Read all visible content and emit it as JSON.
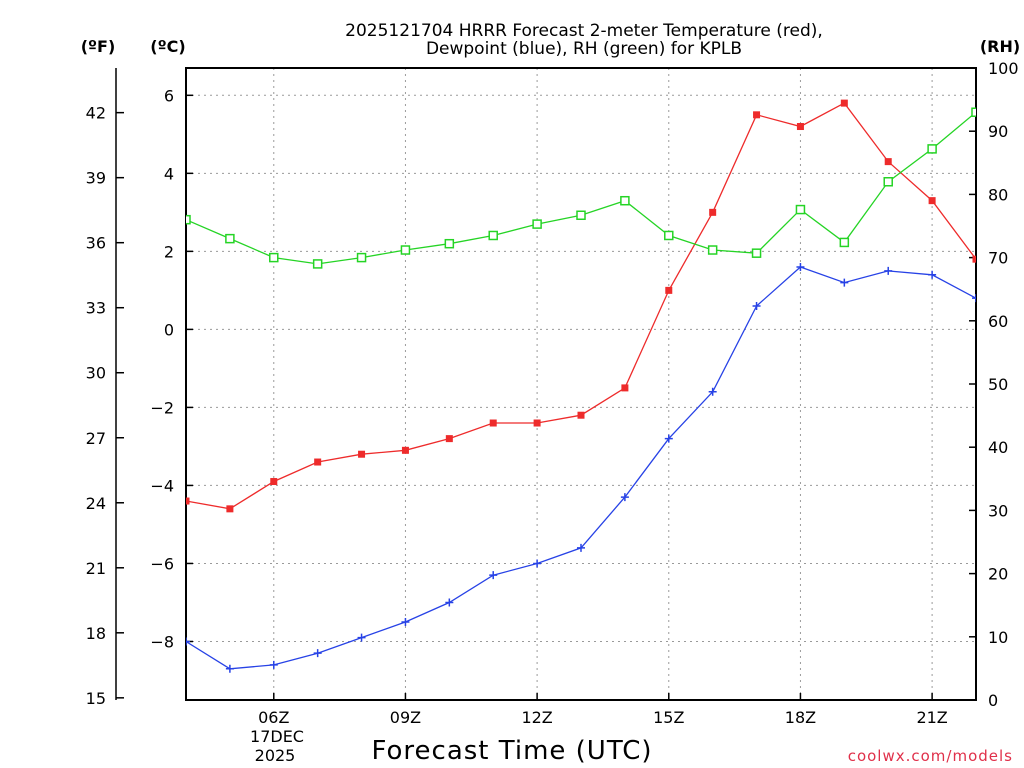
{
  "chart_data": {
    "type": "line",
    "title_line1": "2025121704 HRRR Forecast 2-meter Temperature (red),",
    "title_line2": "Dewpoint (blue), RH (green) for KPLB",
    "xlabel": "Forecast Time (UTC)",
    "credit": "coolwx.com/models",
    "units": {
      "fahrenheit": "(ºF)",
      "celsius": "(ºC)",
      "rh": "(RH)"
    },
    "date_label": [
      "17DEC",
      "2025"
    ],
    "xlim": [
      4,
      22
    ],
    "x_ticks": [
      {
        "hour": 6,
        "label": "06Z"
      },
      {
        "hour": 9,
        "label": "09Z"
      },
      {
        "hour": 12,
        "label": "12Z"
      },
      {
        "hour": 15,
        "label": "15Z"
      },
      {
        "hour": 18,
        "label": "18Z"
      },
      {
        "hour": 21,
        "label": "21Z"
      }
    ],
    "ylim_celsius": [
      -9.5,
      6.7
    ],
    "y_ticks_celsius": [
      6,
      4,
      2,
      0,
      -2,
      -4,
      -6,
      -8
    ],
    "y_tick_labels_celsius": [
      "6",
      "4",
      "2",
      "0",
      "−2",
      "−4",
      "−6",
      "−8"
    ],
    "y_ticks_fahrenheit": [
      42,
      39,
      36,
      33,
      30,
      27,
      24,
      21,
      18,
      15
    ],
    "ylim_rh": [
      0,
      100
    ],
    "y_ticks_rh": [
      100,
      90,
      80,
      70,
      60,
      50,
      40,
      30,
      20,
      10,
      0
    ],
    "hours": [
      4,
      5,
      6,
      7,
      8,
      9,
      10,
      11,
      12,
      13,
      14,
      15,
      16,
      17,
      18,
      19,
      20,
      21,
      22
    ],
    "series": [
      {
        "name": "Temperature",
        "color": "#ee2b2b",
        "marker": "filled-square",
        "axis": "celsius",
        "values": [
          -4.4,
          -4.6,
          -3.9,
          -3.4,
          -3.2,
          -3.1,
          -2.8,
          -2.4,
          -2.4,
          -2.2,
          -1.5,
          1.0,
          3.0,
          5.5,
          5.2,
          5.8,
          4.3,
          3.3,
          1.8
        ]
      },
      {
        "name": "Dewpoint",
        "color": "#2742e6",
        "marker": "plus",
        "axis": "celsius",
        "values": [
          -8.0,
          -8.7,
          -8.6,
          -8.3,
          -7.9,
          -7.5,
          -7.0,
          -6.3,
          -6.0,
          -5.6,
          -4.3,
          -2.8,
          -1.6,
          0.6,
          1.6,
          1.2,
          1.5,
          1.4,
          0.8
        ]
      },
      {
        "name": "RH",
        "color": "#25d425",
        "marker": "open-square",
        "axis": "rh",
        "values": [
          76,
          73,
          70,
          69,
          70,
          71.2,
          72.2,
          73.5,
          75.3,
          76.7,
          79,
          73.5,
          71.2,
          70.7,
          77.6,
          72.4,
          82,
          87.2,
          93
        ]
      }
    ]
  }
}
